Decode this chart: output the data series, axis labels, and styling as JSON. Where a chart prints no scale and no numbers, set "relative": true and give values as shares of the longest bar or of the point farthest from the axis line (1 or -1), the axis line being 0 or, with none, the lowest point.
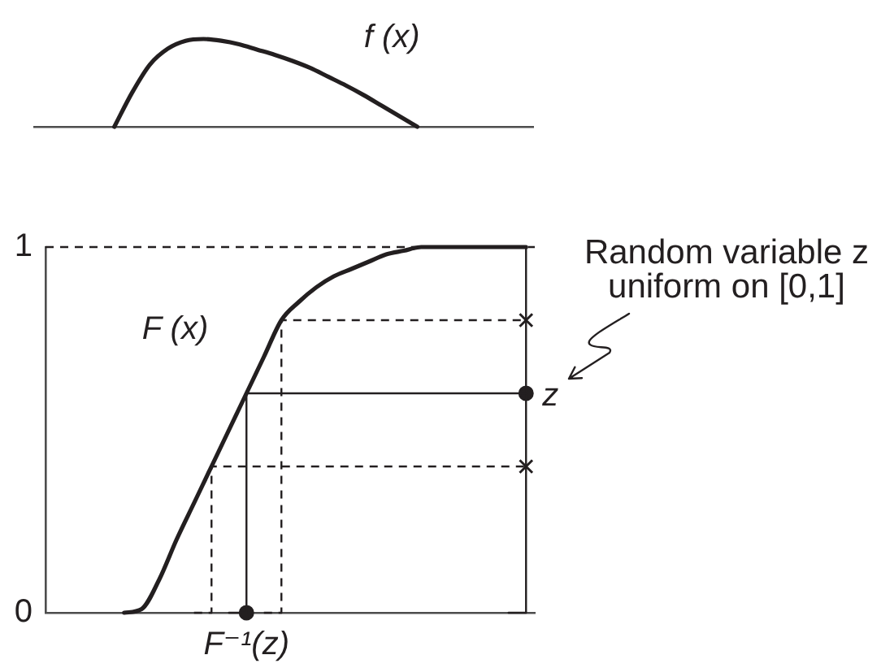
{
  "chart_data": [
    {
      "type": "line",
      "relative": true,
      "categories": [
        null,
        null,
        null,
        null,
        null,
        null,
        null,
        null,
        null,
        null,
        null,
        null,
        null,
        null,
        null,
        null,
        null,
        null,
        null,
        null,
        null,
        null,
        null,
        null,
        null,
        null,
        null,
        null
      ],
      "series": [
        {
          "name": "f (x)",
          "color": "#231f20",
          "values": [
            null,
            null,
            null,
            null,
            0,
            0.39,
            0.71,
            0.89,
            0.98,
            1,
            0.98,
            0.94,
            0.88,
            0.82,
            0.75,
            0.67,
            0.57,
            0.47,
            0.36,
            0.24,
            0.12,
            0,
            null,
            null,
            null,
            null,
            null,
            null
          ]
        }
      ]
    },
    {
      "type": "line",
      "categories": [
        null,
        null,
        null,
        null,
        null,
        null,
        null,
        null,
        null,
        null,
        null,
        "F⁻¹(z)",
        null,
        null,
        null,
        null,
        null,
        null,
        null,
        null,
        null,
        null,
        null,
        null,
        null,
        null,
        null,
        null
      ],
      "ylim": [
        0,
        1
      ],
      "yticks": [
        0,
        1
      ],
      "ref_lines": [
        {
          "axis": "y",
          "value": 1,
          "line_style": "dashed",
          "color": "#231f20"
        }
      ],
      "series": [
        {
          "name": "F (x)",
          "color": "#231f20",
          "values": [
            null,
            null,
            null,
            null,
            0,
            0.01,
            0.09,
            0.2,
            0.3,
            0.4,
            0.5,
            0.6,
            0.7,
            0.8,
            0.85,
            0.89,
            0.92,
            0.94,
            0.96,
            0.98,
            0.99,
            1,
            1,
            1,
            1,
            1,
            1,
            1
          ]
        },
        {
          "type": "step",
          "color": "#231f20",
          "line_style": "dashed",
          "values": [
            null,
            null,
            null,
            null,
            null,
            null,
            null,
            null,
            0,
            0.4,
            0.4,
            0.4,
            0.4,
            0.4,
            0.4,
            0.4,
            0.4,
            0.4,
            0.4,
            0.4,
            0.4,
            0.4,
            0.4,
            0.4,
            0.4,
            0.4,
            0.4,
            0.4
          ]
        },
        {
          "type": "step",
          "color": "#231f20",
          "values": [
            null,
            null,
            null,
            null,
            null,
            null,
            null,
            null,
            null,
            null,
            0,
            0.6,
            0.6,
            0.6,
            0.6,
            0.6,
            0.6,
            0.6,
            0.6,
            0.6,
            0.6,
            0.6,
            0.6,
            0.6,
            0.6,
            0.6,
            0.6,
            0.6
          ]
        },
        {
          "type": "step",
          "color": "#231f20",
          "line_style": "dashed",
          "values": [
            null,
            null,
            null,
            null,
            null,
            null,
            null,
            null,
            null,
            null,
            null,
            null,
            0,
            0.8,
            0.8,
            0.8,
            0.8,
            0.8,
            0.8,
            0.8,
            0.8,
            0.8,
            0.8,
            0.8,
            0.8,
            0.8,
            0.8,
            0.8
          ]
        },
        {
          "type": "step",
          "color": "#231f20",
          "values": [
            null,
            null,
            null,
            null,
            null,
            null,
            null,
            null,
            null,
            null,
            null,
            null,
            null,
            null,
            null,
            null,
            null,
            null,
            null,
            null,
            null,
            null,
            null,
            null,
            null,
            null,
            0,
            1
          ]
        },
        {
          "type": "scatter",
          "marker": "cross",
          "color": "#231f20",
          "values": [
            null,
            null,
            null,
            null,
            null,
            null,
            null,
            null,
            null,
            null,
            null,
            null,
            null,
            null,
            null,
            null,
            null,
            null,
            null,
            null,
            null,
            null,
            null,
            null,
            null,
            null,
            null,
            0.4
          ]
        },
        {
          "type": "scatter",
          "marker": "cross",
          "color": "#231f20",
          "values": [
            null,
            null,
            null,
            null,
            null,
            null,
            null,
            null,
            null,
            null,
            null,
            null,
            null,
            null,
            null,
            null,
            null,
            null,
            null,
            null,
            null,
            null,
            null,
            null,
            null,
            null,
            null,
            0.8
          ]
        },
        {
          "type": "scatter",
          "marker": "circle",
          "name": "z",
          "color": "#231f20",
          "values": [
            null,
            null,
            null,
            null,
            null,
            null,
            null,
            null,
            null,
            null,
            null,
            null,
            null,
            null,
            null,
            null,
            null,
            null,
            null,
            null,
            null,
            null,
            null,
            null,
            null,
            null,
            null,
            0.6
          ]
        },
        {
          "type": "scatter",
          "marker": "circle",
          "color": "#231f20",
          "values": [
            null,
            null,
            null,
            null,
            null,
            null,
            null,
            null,
            null,
            null,
            null,
            0,
            null,
            null,
            null,
            null,
            null,
            null,
            null,
            null,
            null,
            null,
            null,
            null,
            null,
            null,
            null,
            null
          ]
        }
      ],
      "annotations": [
        "Random variable z\nuniform on [0,1]"
      ]
    }
  ]
}
